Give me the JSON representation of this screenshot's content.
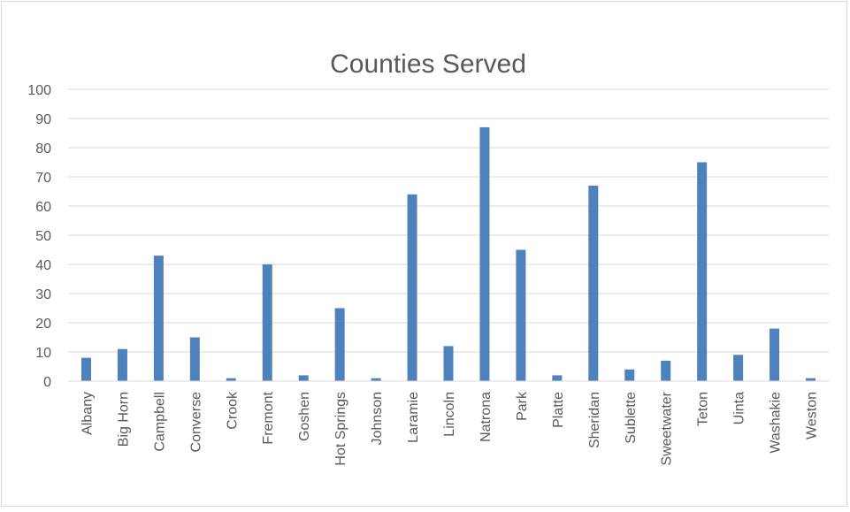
{
  "chart_data": {
    "type": "bar",
    "title": "Counties Served",
    "xlabel": "",
    "ylabel": "",
    "ylim": [
      0,
      100
    ],
    "yticks": [
      0,
      10,
      20,
      30,
      40,
      50,
      60,
      70,
      80,
      90,
      100
    ],
    "grid": true,
    "legend": "none",
    "bar_color": "#4f81bd",
    "categories": [
      "Albany",
      "Big Horn",
      "Campbell",
      "Converse",
      "Crook",
      "Fremont",
      "Goshen",
      "Hot Springs",
      "Johnson",
      "Laramie",
      "Lincoln",
      "Natrona",
      "Park",
      "Platte",
      "Sheridan",
      "Sublette",
      "Sweetwater",
      "Teton",
      "Uinta",
      "Washakie",
      "Weston"
    ],
    "values": [
      8,
      11,
      43,
      15,
      1,
      40,
      2,
      25,
      1,
      64,
      12,
      87,
      45,
      2,
      67,
      4,
      7,
      75,
      9,
      18,
      1
    ]
  }
}
